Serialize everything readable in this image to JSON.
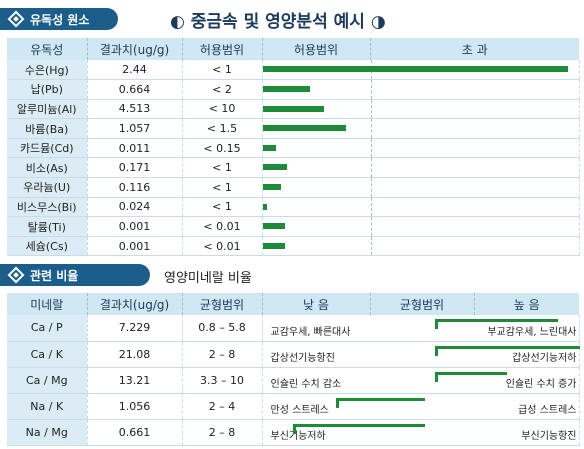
{
  "section1_label": "유독성 원소",
  "page_title": "◐ 중금속 및 영양분석 예시 ◑",
  "table1": {
    "headers": [
      "유독성",
      "결과치(ug/g)",
      "허용범위",
      "허용범위",
      "초  과"
    ],
    "rows": [
      {
        "name": "수은(Hg)",
        "value": "2.44",
        "range": "< 1",
        "level": 1.0
      },
      {
        "name": "납(Pb)",
        "value": "0.664",
        "range": "< 2",
        "level": 0.155
      },
      {
        "name": "알루미늄(Al)",
        "value": "4.513",
        "range": "< 10",
        "level": 0.2
      },
      {
        "name": "바륨(Ba)",
        "value": "1.057",
        "range": "< 1.5",
        "level": 0.275
      },
      {
        "name": "카드뮴(Cd)",
        "value": "0.011",
        "range": "< 0.15",
        "level": 0.045
      },
      {
        "name": "비소(As)",
        "value": "0.171",
        "range": "< 1",
        "level": 0.08
      },
      {
        "name": "우라늄(U)",
        "value": "0.116",
        "range": "< 1",
        "level": 0.06
      },
      {
        "name": "비스무스(Bi)",
        "value": "0.024",
        "range": "< 1",
        "level": 0.015
      },
      {
        "name": "탈륨(Ti)",
        "value": "0.001",
        "range": "< 0.01",
        "level": 0.075
      },
      {
        "name": "세슘(Cs)",
        "value": "0.001",
        "range": "< 0.01",
        "level": 0.075
      }
    ]
  },
  "section2_label": "관련 비율",
  "section2_subtitle": "영양미네랄 비율",
  "table2": {
    "headers": [
      "미네랄",
      "결과치(ug/g)",
      "균형범위",
      "낮 음",
      "균형범위",
      "높 음"
    ],
    "rows": [
      {
        "name": "Ca / P",
        "value": "7.229",
        "range": "0.8 – 5.8",
        "low_label": "교감우세, 빠른대사",
        "high_label": "부교감우세, 느린대사",
        "direction": "high",
        "level": 0.85
      },
      {
        "name": "Ca / K",
        "value": "21.08",
        "range": "2 – 8",
        "low_label": "갑상선기능항진",
        "high_label": "갑상선기능저하",
        "direction": "high",
        "level": 1.0
      },
      {
        "name": "Ca / Mg",
        "value": "13.21",
        "range": "3.3 – 10",
        "low_label": "인슐린 수치 감소",
        "high_label": "인슐린 수치 증가",
        "direction": "high",
        "level": 0.5
      },
      {
        "name": "Na / K",
        "value": "1.056",
        "range": "2 – 4",
        "low_label": "만성 스트레스",
        "high_label": "급성 스트레스",
        "direction": "low",
        "level": 0.55
      },
      {
        "name": "Na / Mg",
        "value": "0.661",
        "range": "2 – 8",
        "low_label": "부신기능저하",
        "high_label": "부신기능항진",
        "direction": "low",
        "level": 0.95
      }
    ]
  }
}
